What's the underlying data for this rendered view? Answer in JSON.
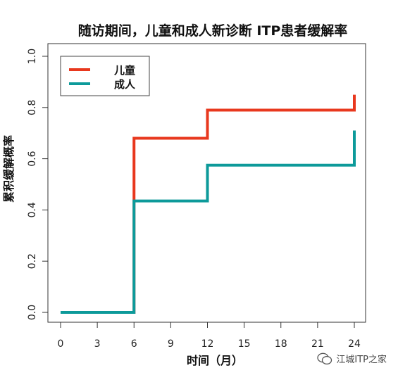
{
  "chart_data": {
    "type": "line",
    "step": true,
    "title": "随访期间，儿童和成人新诊断 ITP患者缓解率",
    "xlabel": "时间（月）",
    "ylabel": "累积缓解概率",
    "xlim": [
      0,
      24
    ],
    "ylim": [
      0,
      1
    ],
    "xticks": [
      0,
      3,
      6,
      9,
      12,
      15,
      18,
      21,
      24
    ],
    "yticks": [
      "0.0",
      "0.2",
      "0.4",
      "0.6",
      "0.8",
      "1.0"
    ],
    "grid": false,
    "legend_position": "top-left",
    "series": [
      {
        "name": "儿童",
        "color": "#e8381e",
        "x": [
          0,
          6,
          6,
          12,
          12,
          24,
          24
        ],
        "y": [
          0,
          0,
          0.68,
          0.68,
          0.79,
          0.79,
          0.85
        ]
      },
      {
        "name": "成人",
        "color": "#0d9a9a",
        "x": [
          0,
          6,
          6,
          12,
          12,
          24,
          24
        ],
        "y": [
          0,
          0,
          0.435,
          0.435,
          0.575,
          0.575,
          0.71
        ]
      }
    ]
  },
  "watermark": {
    "text": "江城ITP之家"
  }
}
